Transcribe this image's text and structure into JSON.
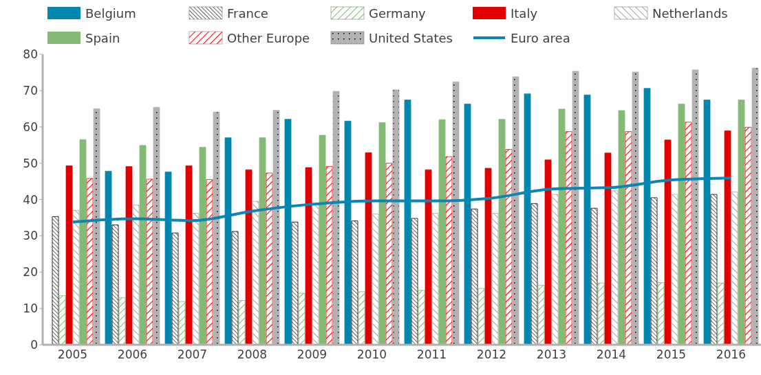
{
  "chart_data": {
    "type": "bar",
    "categories": [
      "2005",
      "2006",
      "2007",
      "2008",
      "2009",
      "2010",
      "2011",
      "2012",
      "2013",
      "2014",
      "2015",
      "2016"
    ],
    "series": [
      {
        "name": "Belgium",
        "color": "#0087b0",
        "values": [
          null,
          47.8,
          47.6,
          57,
          62.1,
          61.6,
          67.4,
          66.3,
          69.1,
          68.8,
          70.6,
          67.4
        ]
      },
      {
        "name": "France",
        "color": "#000000",
        "values": [
          35.3,
          33,
          30.8,
          31.2,
          33.8,
          34.1,
          34.8,
          37.4,
          38.9,
          37.6,
          40.5,
          41.4
        ]
      },
      {
        "name": "Germany",
        "color": "#82bc72",
        "values": [
          13.5,
          13,
          11.9,
          12.2,
          14.2,
          14.6,
          15,
          15.5,
          16.4,
          17,
          17.1,
          17
        ]
      },
      {
        "name": "Italy",
        "color": "#e00000",
        "values": [
          49.3,
          49.1,
          49.3,
          48.2,
          48.8,
          52.9,
          48.2,
          48.6,
          50.9,
          52.8,
          56.4,
          58.9
        ]
      },
      {
        "name": "Netherlands",
        "color": "#a6a6a6",
        "values": [
          37,
          38.5,
          36.2,
          39.5,
          38.9,
          36,
          36.2,
          36.2,
          41.4,
          42.4,
          41.4,
          42.1
        ]
      },
      {
        "name": "Spain",
        "color": "#84bb74",
        "values": [
          56.5,
          54.9,
          54.4,
          57,
          57.7,
          61.2,
          62,
          62.1,
          64.9,
          64.5,
          66.3,
          67.4
        ]
      },
      {
        "name": "Other Europe",
        "color": "#ff0000",
        "values": [
          45.8,
          45.6,
          45.5,
          47.3,
          49.1,
          50,
          51.8,
          53.8,
          58.7,
          58.7,
          61.3,
          59.9
        ]
      },
      {
        "name": "United States",
        "color": "#b2b2b2",
        "values": [
          65,
          65.4,
          64.1,
          64.6,
          69.8,
          70.2,
          72.4,
          73.8,
          75.3,
          75.1,
          75.7,
          76.2
        ]
      },
      {
        "name": "Euro area",
        "type": "line",
        "color": "#0a86b4",
        "values": [
          33.8,
          34.7,
          34.2,
          36.8,
          38.7,
          39.6,
          39.6,
          40.4,
          42.9,
          43.3,
          45.4,
          45.9
        ]
      }
    ],
    "ylim": [
      0,
      80
    ],
    "yticks": [
      0,
      10,
      20,
      30,
      40,
      50,
      60,
      70,
      80
    ],
    "grid": false,
    "legend": "top",
    "marker": "none",
    "line_style": "solid"
  }
}
